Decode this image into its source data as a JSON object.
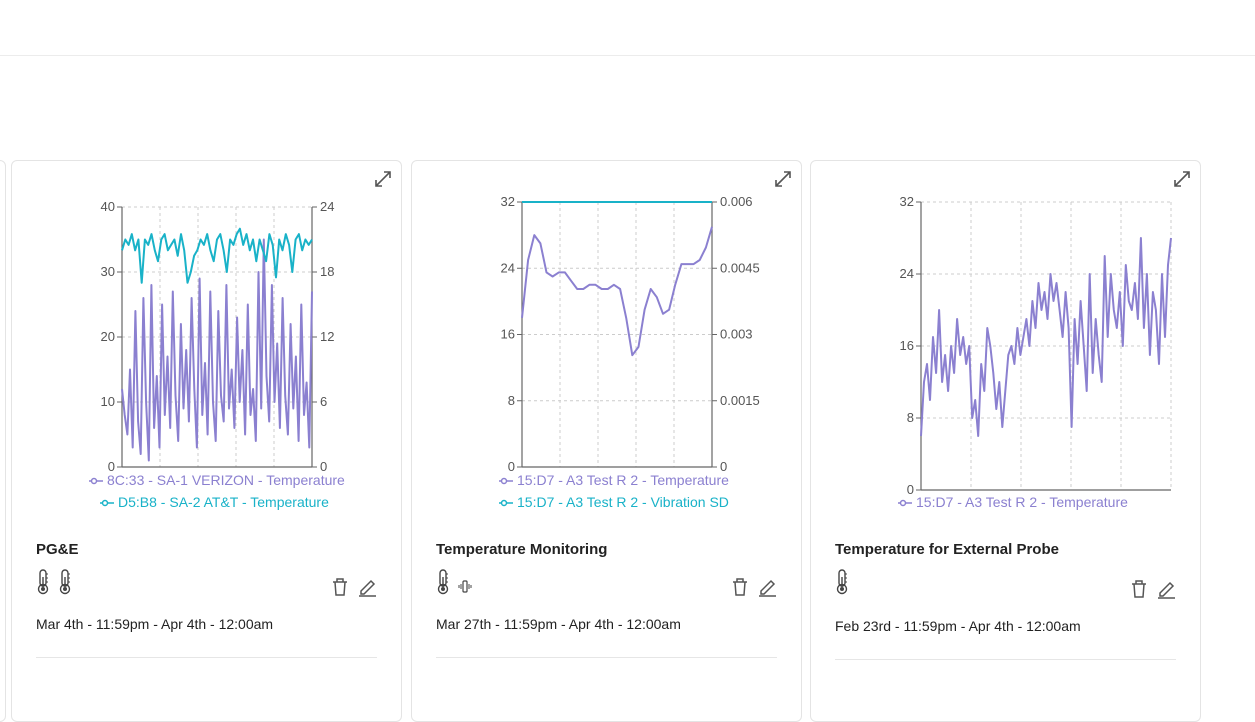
{
  "colors": {
    "purple": "#8b80d0",
    "teal": "#19b2c8",
    "grid": "#cccccc",
    "axis": "#666666"
  },
  "cards": [
    {
      "title": "PG&E",
      "sensor_icons": [
        "thermometer-icon",
        "thermometer-icon"
      ],
      "date_range": "Mar 4th - 11:59pm - Apr 4th - 12:00am",
      "chart_data": {
        "type": "line",
        "left_axis": {
          "ticks": [
            "40",
            "30",
            "20",
            "10",
            "0"
          ],
          "range": [
            0,
            40
          ]
        },
        "right_axis": {
          "ticks": [
            "24",
            "18",
            "12",
            "6",
            "0"
          ],
          "range": [
            0,
            24
          ]
        },
        "series": [
          {
            "name": "8C:33 - SA-1 VERIZON - Temperature",
            "axis": "left",
            "color": "#8b80d0",
            "values": [
              12,
              8,
              5,
              15,
              3,
              24,
              7,
              2,
              26,
              10,
              1,
              28,
              6,
              14,
              3,
              25,
              8,
              17,
              6,
              27,
              11,
              4,
              22,
              9,
              18,
              7,
              26,
              12,
              3,
              29,
              8,
              16,
              5,
              27,
              10,
              4,
              24,
              11,
              7,
              28,
              9,
              15,
              6,
              23,
              10,
              18,
              5,
              25,
              8,
              12,
              4,
              30,
              9,
              35,
              14,
              7,
              28,
              10,
              19,
              6,
              26,
              11,
              5,
              22,
              9,
              17,
              4,
              25,
              8,
              13,
              3,
              27
            ]
          },
          {
            "name": "D5:B8 - SA-2 AT&T - Temperature",
            "axis": "right",
            "color": "#19b2c8",
            "values": [
              20,
              21,
              20.5,
              21.5,
              20,
              21,
              17,
              21,
              20.5,
              21.5,
              20,
              19,
              21,
              21.5,
              20,
              20.5,
              21,
              19.5,
              21.5,
              20,
              17,
              18,
              19.5,
              20,
              21,
              20.5,
              21.5,
              20,
              19,
              21,
              21.5,
              20,
              18,
              21,
              20.5,
              21.5,
              22,
              20.5,
              21.5,
              20,
              21,
              19,
              21,
              20,
              19,
              21.5,
              20.5,
              17.5,
              21,
              20,
              21.5,
              20.5,
              18,
              21,
              21.5,
              20,
              21,
              20.5,
              21
            ]
          }
        ]
      }
    },
    {
      "title": "Temperature Monitoring",
      "sensor_icons": [
        "thermometer-icon",
        "vibration-icon"
      ],
      "date_range": "Mar 27th - 11:59pm - Apr 4th - 12:00am",
      "chart_data": {
        "type": "line",
        "left_axis": {
          "ticks": [
            "32",
            "24",
            "16",
            "8",
            "0"
          ],
          "range": [
            0,
            32
          ]
        },
        "right_axis": {
          "ticks": [
            "0.006",
            "0.0045",
            "0.003",
            "0.0015",
            "0"
          ],
          "range": [
            0,
            0.006
          ]
        },
        "series": [
          {
            "name": "15:D7 - A3 Test R 2 - Temperature",
            "axis": "left",
            "color": "#8b80d0",
            "values": [
              18,
              25,
              28,
              27,
              23.5,
              23,
              23.5,
              23.5,
              22.5,
              21.5,
              21.5,
              22,
              22,
              21.5,
              21.5,
              22,
              21.5,
              18,
              13.5,
              14.5,
              19,
              21.5,
              20.5,
              18.5,
              19,
              22,
              24.5,
              24.5,
              24.5,
              25,
              26.5,
              29
            ]
          },
          {
            "name": "15:D7 - A3 Test R 2 - Vibration SD",
            "axis": "right",
            "color": "#19b2c8",
            "values": [
              0.006,
              0.006
            ]
          }
        ]
      }
    },
    {
      "title": "Temperature for External Probe",
      "sensor_icons": [
        "thermometer-icon"
      ],
      "date_range": "Feb 23rd - 11:59pm - Apr 4th - 12:00am",
      "chart_data": {
        "type": "line",
        "left_axis": {
          "ticks": [
            "32",
            "24",
            "16",
            "8",
            "0"
          ],
          "range": [
            0,
            32
          ]
        },
        "series": [
          {
            "name": "15:D7 - A3 Test R 2 - Temperature",
            "axis": "left",
            "color": "#8b80d0",
            "values": [
              6,
              12,
              14,
              10,
              17,
              13,
              20,
              12,
              15,
              11,
              16,
              13,
              19,
              15,
              17,
              14,
              16,
              8,
              10,
              6,
              14,
              11,
              18,
              16,
              13,
              9,
              12,
              7,
              11,
              15,
              16,
              14,
              18,
              15,
              17,
              19,
              16,
              21,
              18,
              23,
              20,
              22,
              19,
              24,
              21,
              23,
              20,
              17,
              22,
              18,
              7,
              19,
              14,
              21,
              16,
              11,
              24,
              13,
              19,
              15,
              12,
              26,
              17,
              24,
              20,
              18,
              22,
              16,
              25,
              21,
              20,
              23,
              19,
              28,
              18,
              24,
              15,
              22,
              20,
              14,
              24,
              17,
              25,
              28
            ]
          }
        ]
      }
    }
  ]
}
